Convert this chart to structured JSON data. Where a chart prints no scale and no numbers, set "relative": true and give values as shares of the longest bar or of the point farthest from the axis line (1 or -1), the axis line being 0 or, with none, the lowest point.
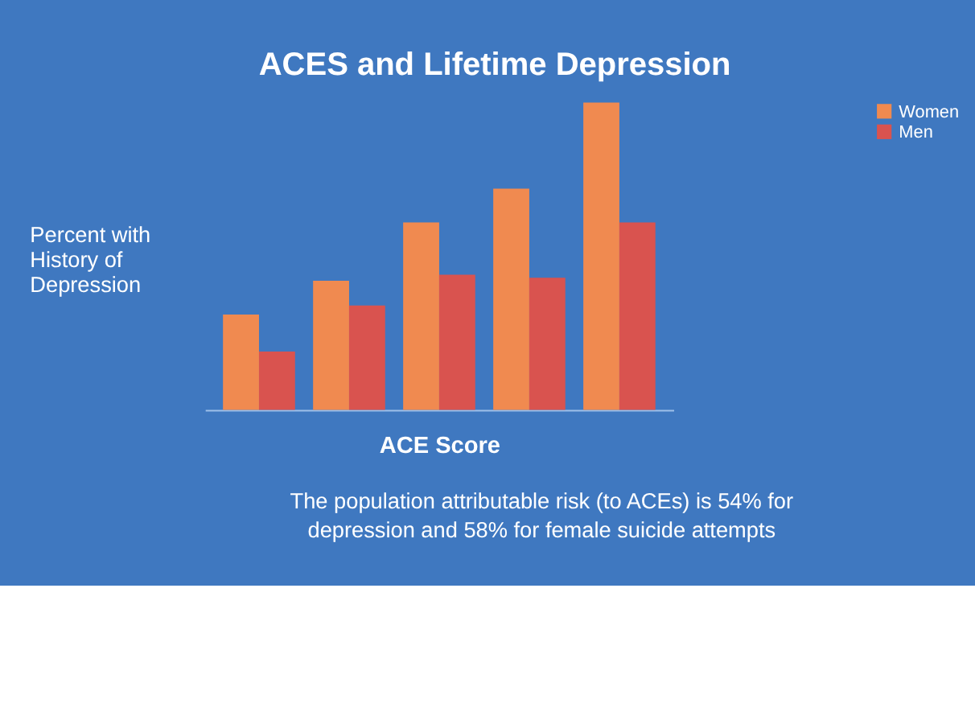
{
  "chart_data": {
    "type": "bar",
    "title": "ACES and Lifetime Depression",
    "xlabel": "ACE Score",
    "ylabel": "Percent with\nHistory of\nDepression",
    "categories": [
      null,
      null,
      null,
      null,
      null
    ],
    "series": [
      {
        "name": "Women",
        "color": "#f08a50",
        "values": [
          0.31,
          0.42,
          0.61,
          0.72,
          1
        ]
      },
      {
        "name": "Men",
        "color": "#d9534f",
        "values": [
          0.19,
          0.34,
          0.44,
          0.43,
          0.61
        ]
      }
    ],
    "relative": true,
    "legend": "right",
    "annotations": [
      "The population attributable risk (to ACEs) is 54% for\ndepression and 58% for female suicide attempts"
    ]
  }
}
